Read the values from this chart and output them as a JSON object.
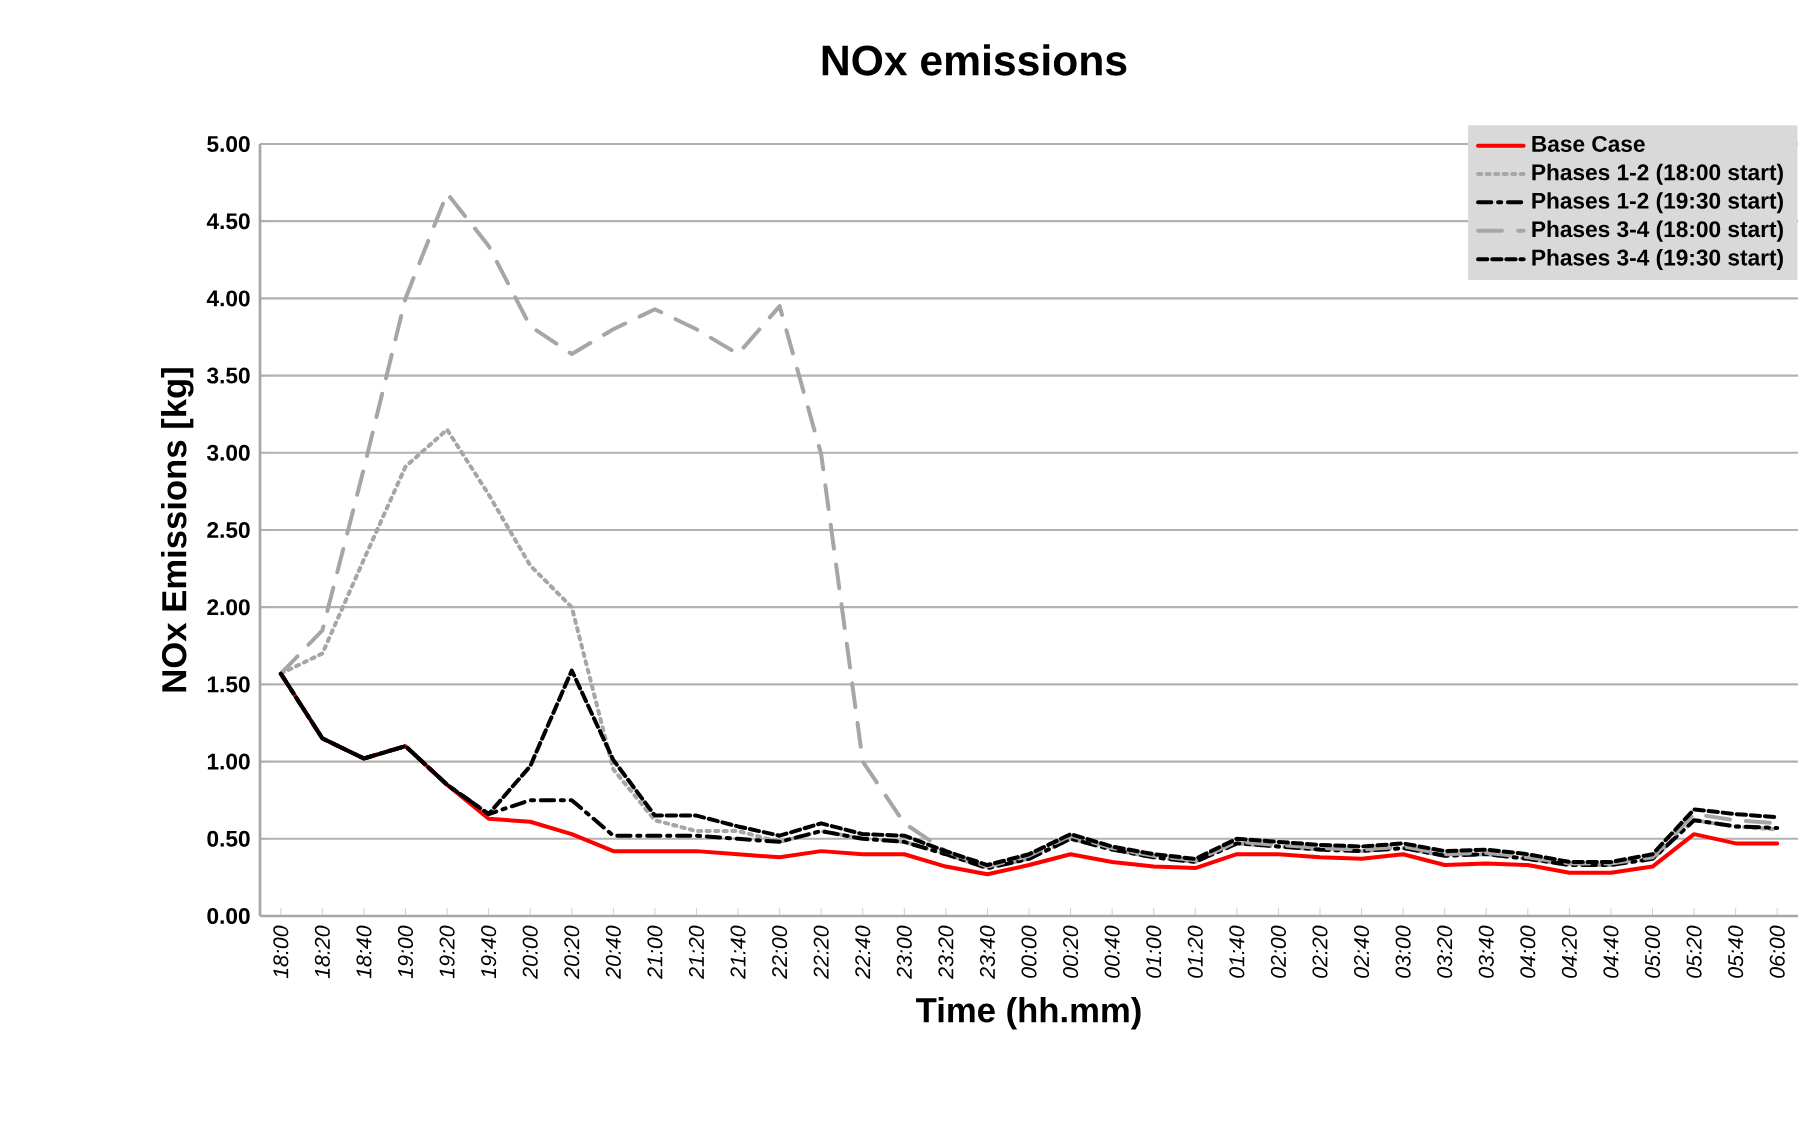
{
  "chart_data": {
    "type": "line",
    "title": "NOx emissions",
    "xlabel": "Time (hh.mm)",
    "ylabel": "NOx Emissions  [kg]",
    "categories": [
      "18:00",
      "18:20",
      "18:40",
      "19:00",
      "19:20",
      "19:40",
      "20:00",
      "20:20",
      "20:40",
      "21:00",
      "21:20",
      "21:40",
      "22:00",
      "22:20",
      "22:40",
      "23:00",
      "23:20",
      "23:40",
      "00:00",
      "00:20",
      "00:40",
      "01:00",
      "01:20",
      "01:40",
      "02:00",
      "02:20",
      "02:40",
      "03:00",
      "03:20",
      "03:40",
      "04:00",
      "04:20",
      "04:40",
      "05:00",
      "05:20",
      "05:40",
      "06:00"
    ],
    "series": [
      {
        "name": "Base Case",
        "color": "#ff0000",
        "line_style": "solid",
        "values": [
          1.57,
          1.15,
          1.02,
          1.1,
          0.85,
          0.63,
          0.61,
          0.53,
          0.42,
          0.42,
          0.42,
          0.4,
          0.38,
          0.42,
          0.4,
          0.4,
          0.32,
          0.27,
          0.33,
          0.4,
          0.35,
          0.32,
          0.31,
          0.4,
          0.4,
          0.38,
          0.37,
          0.4,
          0.33,
          0.34,
          0.33,
          0.28,
          0.28,
          0.32,
          0.53,
          0.47,
          0.47
        ]
      },
      {
        "name": "Phases 1-2 (18:00 start)",
        "color": "#a6a6a6",
        "line_style": "dotted",
        "values": [
          1.57,
          1.7,
          2.31,
          2.91,
          3.15,
          2.73,
          2.27,
          2.0,
          0.95,
          0.62,
          0.55,
          0.55,
          0.48,
          0.55,
          0.5,
          0.48,
          0.4,
          0.31,
          0.37,
          0.5,
          0.43,
          0.38,
          0.35,
          0.47,
          0.45,
          0.43,
          0.42,
          0.44,
          0.39,
          0.4,
          0.37,
          0.33,
          0.33,
          0.37,
          0.62,
          0.58,
          0.56
        ]
      },
      {
        "name": "Phases 1-2 (19:30 start)",
        "color": "#000000",
        "line_style": "dashdot",
        "values": [
          1.57,
          1.15,
          1.02,
          1.1,
          0.85,
          0.66,
          0.75,
          0.75,
          0.52,
          0.52,
          0.52,
          0.5,
          0.48,
          0.55,
          0.5,
          0.48,
          0.4,
          0.31,
          0.37,
          0.5,
          0.43,
          0.38,
          0.35,
          0.47,
          0.45,
          0.43,
          0.42,
          0.44,
          0.39,
          0.4,
          0.37,
          0.33,
          0.33,
          0.37,
          0.62,
          0.58,
          0.57
        ]
      },
      {
        "name": "Phases 3-4  (18:00 start)",
        "color": "#a6a6a6",
        "line_style": "long dashed",
        "values": [
          1.57,
          1.85,
          2.9,
          4.0,
          4.68,
          4.34,
          3.82,
          3.64,
          3.8,
          3.93,
          3.8,
          3.64,
          3.95,
          2.99,
          1.0,
          0.6,
          0.42,
          0.32,
          0.39,
          0.52,
          0.44,
          0.39,
          0.36,
          0.48,
          0.46,
          0.44,
          0.43,
          0.45,
          0.4,
          0.41,
          0.38,
          0.34,
          0.34,
          0.38,
          0.66,
          0.62,
          0.6
        ]
      },
      {
        "name": "Phases 3-4  (19:30 start)",
        "color": "#000000",
        "line_style": "dashed",
        "values": [
          1.57,
          1.15,
          1.02,
          1.1,
          0.85,
          0.66,
          0.97,
          1.59,
          1.01,
          0.65,
          0.65,
          0.58,
          0.52,
          0.6,
          0.53,
          0.52,
          0.42,
          0.33,
          0.4,
          0.53,
          0.45,
          0.4,
          0.37,
          0.5,
          0.48,
          0.46,
          0.45,
          0.47,
          0.42,
          0.43,
          0.4,
          0.35,
          0.35,
          0.4,
          0.69,
          0.66,
          0.64
        ]
      }
    ],
    "ylim": [
      0,
      5
    ],
    "yticks": [
      {
        "value": 0,
        "label": "0.00"
      },
      {
        "value": 0.5,
        "label": "0.50"
      },
      {
        "value": 1,
        "label": "1.00"
      },
      {
        "value": 1.5,
        "label": "1.50"
      },
      {
        "value": 2,
        "label": "2.00"
      },
      {
        "value": 2.5,
        "label": "2.50"
      },
      {
        "value": 3,
        "label": "3.00"
      },
      {
        "value": 3.5,
        "label": "3.50"
      },
      {
        "value": 4,
        "label": "4.00"
      },
      {
        "value": 4.5,
        "label": "4.50"
      },
      {
        "value": 5,
        "label": "5.00"
      }
    ],
    "grid": "y",
    "legend": "top right",
    "marker": "none"
  }
}
